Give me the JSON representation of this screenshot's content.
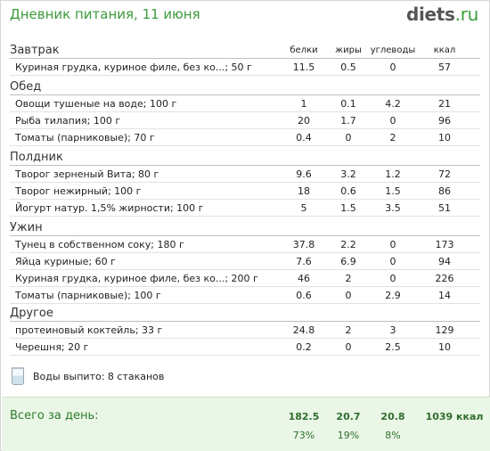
{
  "title": "Дневник питания, 11 июня",
  "logo": {
    "main": "diets",
    "suffix": ".ru"
  },
  "columns": [
    "белки",
    "жиры",
    "углеводы",
    "ккал"
  ],
  "sections": [
    {
      "title": "Завтрак",
      "rows": [
        {
          "name": "Куриная грудка, куриное филе, без ко...; 50 г",
          "values": [
            "11.5",
            "0.5",
            "0",
            "57"
          ]
        }
      ]
    },
    {
      "title": "Обед",
      "rows": [
        {
          "name": "Овощи тушеные на воде; 100 г",
          "values": [
            "1",
            "0.1",
            "4.2",
            "21"
          ]
        },
        {
          "name": "Рыба тилапия; 100 г",
          "values": [
            "20",
            "1.7",
            "0",
            "96"
          ]
        },
        {
          "name": "Томаты (парниковые); 70 г",
          "values": [
            "0.4",
            "0",
            "2",
            "10"
          ]
        }
      ]
    },
    {
      "title": "Полдник",
      "rows": [
        {
          "name": "Творог зерненый Вита; 80 г",
          "values": [
            "9.6",
            "3.2",
            "1.2",
            "72"
          ]
        },
        {
          "name": "Творог нежирный; 100 г",
          "values": [
            "18",
            "0.6",
            "1.5",
            "86"
          ]
        },
        {
          "name": "Йогурт натур. 1,5% жирности; 100 г",
          "values": [
            "5",
            "1.5",
            "3.5",
            "51"
          ]
        }
      ]
    },
    {
      "title": "Ужин",
      "rows": [
        {
          "name": "Тунец в собственном соку; 180 г",
          "values": [
            "37.8",
            "2.2",
            "0",
            "173"
          ]
        },
        {
          "name": "Яйца куриные; 60 г",
          "values": [
            "7.6",
            "6.9",
            "0",
            "94"
          ]
        },
        {
          "name": "Куриная грудка, куриное филе, без ко...; 200 г",
          "values": [
            "46",
            "2",
            "0",
            "226"
          ]
        },
        {
          "name": "Томаты (парниковые); 100 г",
          "values": [
            "0.6",
            "0",
            "2.9",
            "14"
          ]
        }
      ]
    },
    {
      "title": "Другое",
      "rows": [
        {
          "name": "протеиновый коктейль; 33 г",
          "values": [
            "24.8",
            "2",
            "3",
            "129"
          ]
        },
        {
          "name": "Черешня; 20 г",
          "values": [
            "0.2",
            "0",
            "2.5",
            "10"
          ]
        }
      ]
    }
  ],
  "water": {
    "icon": "water-glass-icon",
    "label": "Воды выпито: 8 стаканов"
  },
  "totals": {
    "label": "Всего за день:",
    "values": [
      "182.5",
      "20.7",
      "20.8",
      "1039 ккал"
    ],
    "percents": [
      "73%",
      "19%",
      "8%"
    ]
  }
}
